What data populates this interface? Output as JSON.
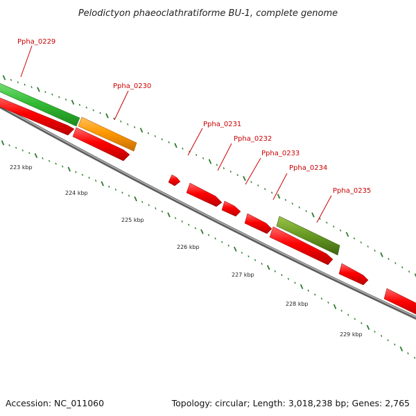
{
  "map": {
    "title": "Pelodictyon phaeoclathratiforme BU-1, complete genome",
    "accession_label": "Accession: NC_011060",
    "topology_label": "Topology: circular; Length: 3,018,238 bp; Genes: 2,765",
    "colors": {
      "gene_red": "#ff0000",
      "gene_orange": "#ff9900",
      "gene_green": "#33bb33",
      "gene_olive": "#669922",
      "backbone": "#888888",
      "tick": "#2a7a2a",
      "locus_label": "#cc0000"
    },
    "kbp_labels": [
      "223 kbp",
      "224 kbp",
      "225 kbp",
      "226 kbp",
      "227 kbp",
      "228 kbp",
      "229 kbp"
    ],
    "genes": [
      {
        "locus": "Ppha_0229",
        "color": "gene_green"
      },
      {
        "locus": "Ppha_0230",
        "color": "gene_orange"
      },
      {
        "locus": "Ppha_0231",
        "color": "gene_red"
      },
      {
        "locus": "Ppha_0232",
        "color": "gene_red"
      },
      {
        "locus": "Ppha_0233",
        "color": "gene_red"
      },
      {
        "locus": "Ppha_0234",
        "color": "gene_red"
      },
      {
        "locus": "Ppha_0235",
        "color": "gene_olive"
      }
    ]
  }
}
